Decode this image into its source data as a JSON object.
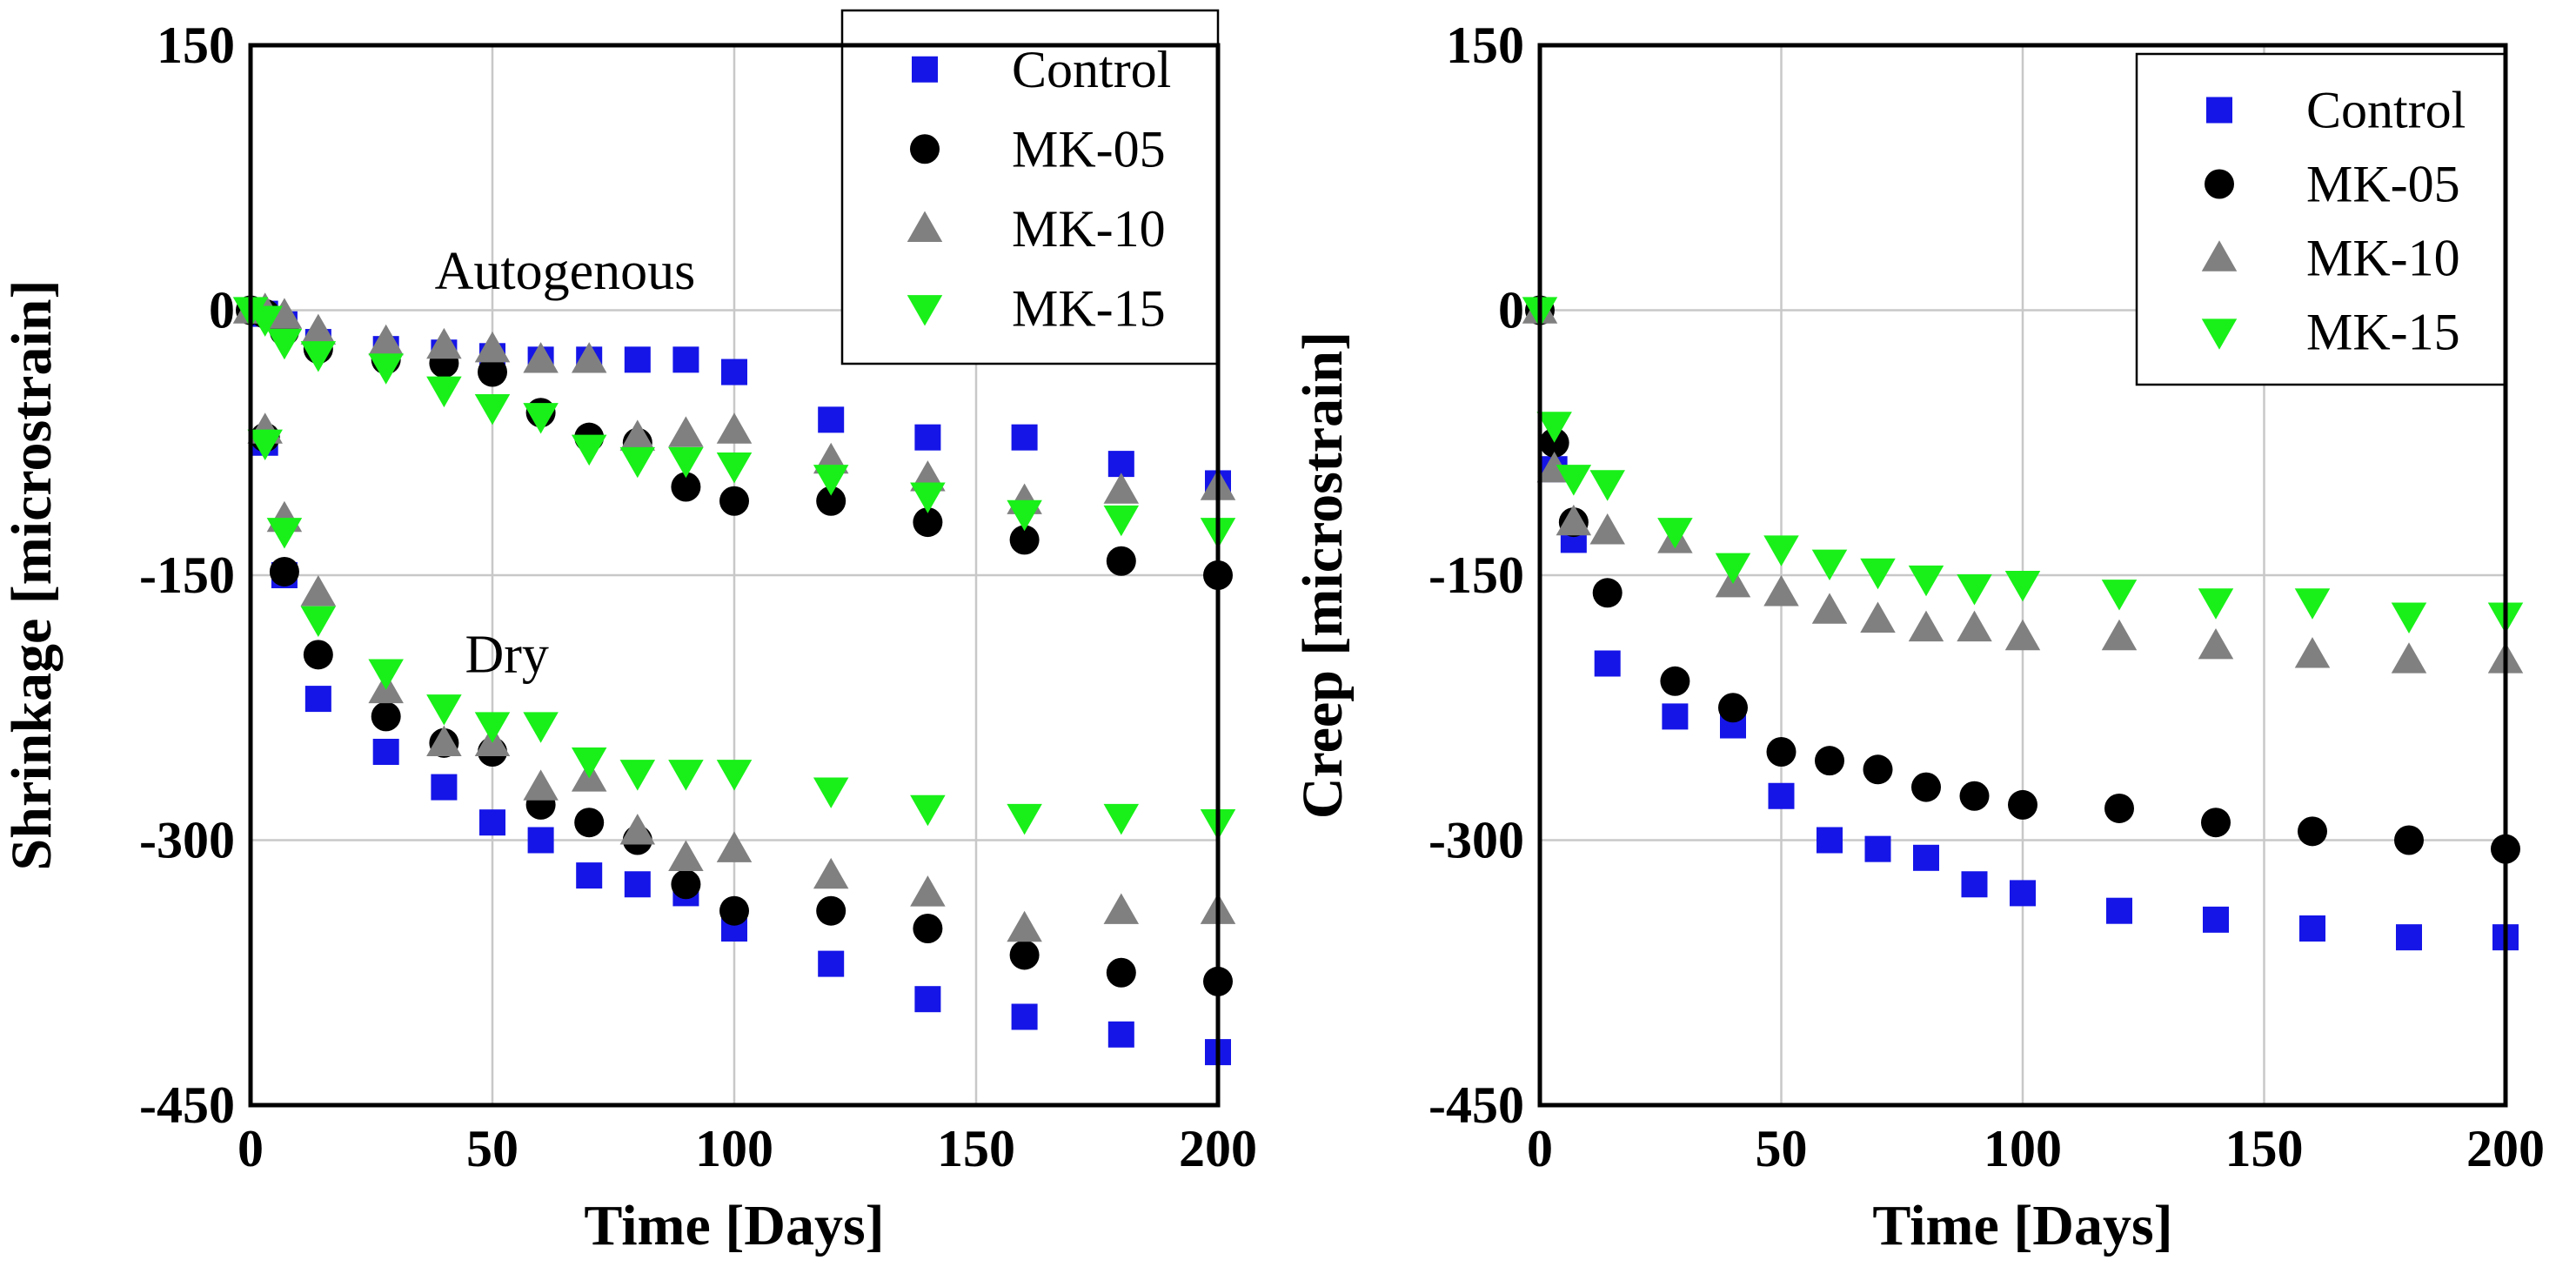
{
  "chart_data": [
    {
      "type": "scatter",
      "name": "shrinkage",
      "xlabel": "Time [Days]",
      "ylabel": "Shrinkage [microstrain]",
      "xlim": [
        0,
        200
      ],
      "ylim": [
        -450,
        150
      ],
      "xticks": [
        0,
        50,
        100,
        150,
        200
      ],
      "yticks": [
        150,
        0,
        -150,
        -300,
        -450
      ],
      "xtick_labels": [
        "0",
        "50",
        "100",
        "150",
        "200"
      ],
      "ytick_labels": [
        "150",
        "0",
        "-150",
        "-300",
        "-450"
      ],
      "grid": true,
      "legend_position": "top-right",
      "annotations": [
        {
          "text": "Autogenous",
          "x": 65,
          "y": 12
        },
        {
          "text": "Dry",
          "x": 53,
          "y": -205
        }
      ],
      "series": [
        {
          "name": "Control",
          "label": "Control",
          "marker": "square",
          "color": "#1515e8",
          "group": "Autogenous",
          "x": [
            0,
            3,
            7,
            14,
            28,
            40,
            50,
            60,
            70,
            80,
            90,
            100,
            120,
            140,
            160,
            180,
            200
          ],
          "y": [
            0,
            -2,
            -8,
            -18,
            -22,
            -24,
            -26,
            -28,
            -28,
            -28,
            -28,
            -35,
            -62,
            -72,
            -72,
            -87,
            -98
          ]
        },
        {
          "name": "Control",
          "marker": "square",
          "color": "#1515e8",
          "group": "Dry",
          "x": [
            3,
            7,
            14,
            28,
            40,
            50,
            60,
            70,
            80,
            90,
            100,
            120,
            140,
            160,
            180,
            200
          ],
          "y": [
            -75,
            -150,
            -220,
            -250,
            -270,
            -290,
            -300,
            -320,
            -325,
            -330,
            -350,
            -370,
            -390,
            -400,
            -410,
            -420
          ]
        },
        {
          "name": "MK-05",
          "label": "MK-05",
          "marker": "circle",
          "color": "#000000",
          "group": "Autogenous",
          "x": [
            0,
            3,
            7,
            14,
            28,
            40,
            50,
            60,
            70,
            80,
            90,
            100,
            120,
            140,
            160,
            180,
            200
          ],
          "y": [
            0,
            -2,
            -12,
            -22,
            -28,
            -30,
            -35,
            -58,
            -72,
            -75,
            -100,
            -108,
            -108,
            -120,
            -130,
            -142,
            -150
          ]
        },
        {
          "name": "MK-05",
          "marker": "circle",
          "color": "#000000",
          "group": "Dry",
          "x": [
            3,
            7,
            14,
            28,
            40,
            50,
            60,
            70,
            80,
            90,
            100,
            120,
            140,
            160,
            180,
            200
          ],
          "y": [
            -72,
            -148,
            -195,
            -230,
            -245,
            -250,
            -280,
            -290,
            -300,
            -325,
            -340,
            -340,
            -350,
            -365,
            -375,
            -380
          ]
        },
        {
          "name": "MK-10",
          "label": "MK-10",
          "marker": "triangle-up",
          "color": "#808080",
          "group": "Autogenous",
          "x": [
            0,
            3,
            7,
            14,
            28,
            40,
            50,
            60,
            70,
            80,
            90,
            100,
            120,
            140,
            160,
            180,
            200
          ],
          "y": [
            0,
            0,
            -3,
            -12,
            -18,
            -20,
            -22,
            -28,
            -28,
            -72,
            -70,
            -68,
            -85,
            -95,
            -108,
            -102,
            -100
          ]
        },
        {
          "name": "MK-10",
          "marker": "triangle-up",
          "color": "#808080",
          "group": "Dry",
          "x": [
            3,
            7,
            14,
            28,
            40,
            50,
            60,
            70,
            80,
            90,
            100,
            120,
            140,
            160,
            180,
            200
          ],
          "y": [
            -68,
            -118,
            -160,
            -215,
            -245,
            -245,
            -270,
            -265,
            -295,
            -310,
            -305,
            -320,
            -330,
            -350,
            -340,
            -340
          ]
        },
        {
          "name": "MK-15",
          "label": "MK-15",
          "marker": "triangle-down",
          "color": "#19f019",
          "group": "Autogenous",
          "x": [
            0,
            3,
            7,
            14,
            28,
            40,
            50,
            60,
            70,
            80,
            90,
            100,
            120,
            140,
            160,
            180,
            200
          ],
          "y": [
            0,
            -5,
            -18,
            -25,
            -32,
            -45,
            -55,
            -60,
            -78,
            -85,
            -85,
            -88,
            -95,
            -105,
            -115,
            -118,
            -125
          ]
        },
        {
          "name": "MK-15",
          "marker": "triangle-down",
          "color": "#19f019",
          "group": "Dry",
          "x": [
            3,
            7,
            14,
            28,
            40,
            50,
            60,
            70,
            80,
            90,
            100,
            120,
            140,
            160,
            180,
            200
          ],
          "y": [
            -75,
            -125,
            -175,
            -205,
            -225,
            -235,
            -235,
            -255,
            -262,
            -262,
            -262,
            -272,
            -282,
            -287,
            -287,
            -290
          ]
        }
      ]
    },
    {
      "type": "scatter",
      "name": "creep",
      "xlabel": "Time [Days]",
      "ylabel": "Creep [microstrain]",
      "xlim": [
        0,
        200
      ],
      "ylim": [
        -450,
        150
      ],
      "xticks": [
        0,
        50,
        100,
        150,
        200
      ],
      "yticks": [
        150,
        0,
        -150,
        -300,
        -450
      ],
      "xtick_labels": [
        "0",
        "50",
        "100",
        "150",
        "200"
      ],
      "ytick_labels": [
        "150",
        "0",
        "-150",
        "-300",
        "-450"
      ],
      "grid": true,
      "legend_position": "top-right",
      "annotations": [],
      "series": [
        {
          "name": "Control",
          "label": "Control",
          "marker": "square",
          "color": "#1515e8",
          "x": [
            0,
            3,
            7,
            14,
            28,
            40,
            50,
            60,
            70,
            80,
            90,
            100,
            120,
            140,
            160,
            180,
            200
          ],
          "y": [
            0,
            -90,
            -130,
            -200,
            -230,
            -235,
            -275,
            -300,
            -305,
            -310,
            -325,
            -330,
            -340,
            -345,
            -350,
            -355,
            -355
          ]
        },
        {
          "name": "MK-05",
          "label": "MK-05",
          "marker": "circle",
          "color": "#000000",
          "x": [
            0,
            3,
            7,
            14,
            28,
            40,
            50,
            60,
            70,
            80,
            90,
            100,
            120,
            140,
            160,
            180,
            200
          ],
          "y": [
            0,
            -75,
            -120,
            -160,
            -210,
            -225,
            -250,
            -255,
            -260,
            -270,
            -275,
            -280,
            -282,
            -290,
            -295,
            -300,
            -305
          ]
        },
        {
          "name": "MK-10",
          "label": "MK-10",
          "marker": "triangle-up",
          "color": "#808080",
          "x": [
            0,
            3,
            7,
            14,
            28,
            40,
            50,
            60,
            70,
            80,
            90,
            100,
            120,
            140,
            160,
            180,
            200
          ],
          "y": [
            0,
            -90,
            -120,
            -125,
            -130,
            -155,
            -160,
            -170,
            -175,
            -180,
            -180,
            -185,
            -185,
            -190,
            -195,
            -198,
            -198
          ]
        },
        {
          "name": "MK-15",
          "label": "MK-15",
          "marker": "triangle-down",
          "color": "#19f019",
          "x": [
            0,
            3,
            7,
            14,
            28,
            40,
            50,
            60,
            70,
            80,
            90,
            100,
            120,
            140,
            160,
            180,
            200
          ],
          "y": [
            0,
            -65,
            -95,
            -98,
            -125,
            -145,
            -135,
            -143,
            -148,
            -152,
            -157,
            -155,
            -160,
            -165,
            -165,
            -173,
            -173
          ]
        }
      ]
    }
  ]
}
